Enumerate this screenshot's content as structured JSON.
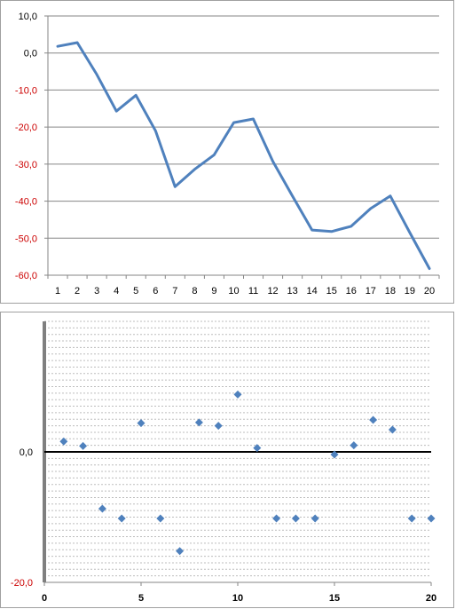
{
  "chart_data": [
    {
      "type": "line",
      "title": "",
      "xlabel": "",
      "ylabel": "",
      "categories": [
        "1",
        "2",
        "3",
        "4",
        "5",
        "6",
        "7",
        "8",
        "9",
        "10",
        "11",
        "12",
        "13",
        "14",
        "15",
        "16",
        "17",
        "18",
        "19",
        "20"
      ],
      "values": [
        1.8,
        2.8,
        -5.8,
        -15.7,
        -11.4,
        -21.0,
        -36.1,
        -31.4,
        -27.5,
        -18.8,
        -17.8,
        -29.3,
        -38.6,
        -47.8,
        -48.2,
        -46.8,
        -42.0,
        -38.6,
        -48.5,
        -58.2
      ],
      "ylim": [
        -60,
        10
      ],
      "yticks": [
        "10,0",
        "0,0",
        "-10,0",
        "-20,0",
        "-30,0",
        "-40,0",
        "-50,0",
        "-60,0"
      ],
      "grid": true,
      "line_color": "#4f81bd"
    },
    {
      "type": "scatter",
      "title": "",
      "xlabel": "",
      "ylabel": "",
      "x": [
        1,
        2,
        3,
        4,
        5,
        6,
        7,
        8,
        9,
        10,
        11,
        12,
        13,
        14,
        15,
        16,
        17,
        18,
        19,
        20
      ],
      "y": [
        1.6,
        0.9,
        -8.7,
        -10.2,
        4.4,
        -10.2,
        -15.2,
        4.5,
        4.0,
        8.8,
        0.6,
        -10.2,
        -10.2,
        -10.2,
        -0.4,
        1.0,
        4.9,
        3.4,
        -10.2,
        -10.2
      ],
      "xlim": [
        0,
        20
      ],
      "ylim": [
        -20,
        20
      ],
      "xticks": [
        "0",
        "5",
        "10",
        "15",
        "20"
      ],
      "yticks": [
        "0,0",
        "-20,0"
      ],
      "grid": true,
      "marker_color": "#4f81bd"
    }
  ]
}
